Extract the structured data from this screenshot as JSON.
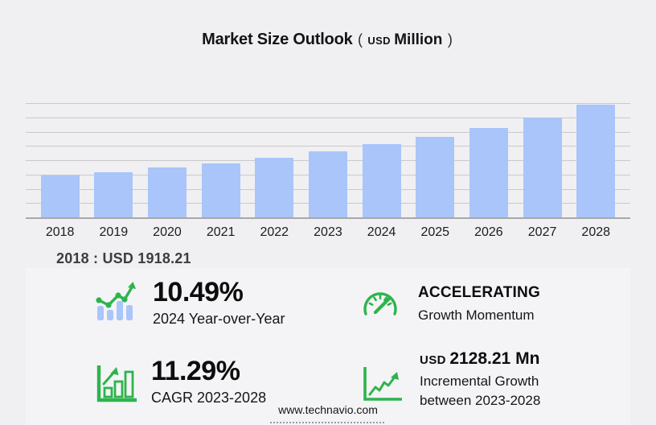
{
  "title": {
    "main": "Market Size Outlook",
    "paren_open": "(",
    "currency": "USD",
    "unit": "Million",
    "paren_close": ")"
  },
  "chart_data": {
    "type": "bar",
    "title": "Market Size Outlook (USD Million)",
    "xlabel": "",
    "ylabel": "USD Million",
    "categories": [
      "2018",
      "2019",
      "2020",
      "2021",
      "2022",
      "2023",
      "2024",
      "2025",
      "2026",
      "2027",
      "2028"
    ],
    "values": [
      1918.21,
      2060,
      2280,
      2465,
      2715,
      3009.19,
      3324.85,
      3660,
      4065,
      4540,
      5137.4
    ],
    "values_note": "2018 labeled on chart (USD 1918.21); 2023, 2024 and 2028 derived from CAGR 11.29%, YoY 10.49% and incremental growth 2128.21; other years estimated from bar heights",
    "ylim": [
      0,
      5200
    ],
    "grid": "horizontal",
    "gridline_count": 8,
    "legend": "none",
    "bar_color": "#a9c5fa"
  },
  "annotation": {
    "first_year_label": "2018 : USD  1918.21"
  },
  "stats": [
    {
      "icon": "bar-chart-trend-icon",
      "value": "10.49%",
      "label": "2024 Year-over-Year"
    },
    {
      "icon": "gauge-icon",
      "value": "ACCELERATING",
      "label": "Growth Momentum"
    },
    {
      "icon": "bar-growth-arrow-icon",
      "value": "11.29%",
      "label": "CAGR 2023-2028"
    },
    {
      "icon": "line-growth-axes-icon",
      "value_prefix": "USD",
      "value": "2128.21 Mn",
      "label_line1": "Incremental Growth",
      "label_line2": "between 2023-2028"
    }
  ],
  "footer": {
    "website": "www.technavio.com"
  },
  "colors": {
    "background": "#f0f0f2",
    "bar_blue": "#a9c5fa",
    "accent_green": "#2db44c",
    "gridline": "#c9c9cb",
    "axis": "#a8a8aa"
  }
}
